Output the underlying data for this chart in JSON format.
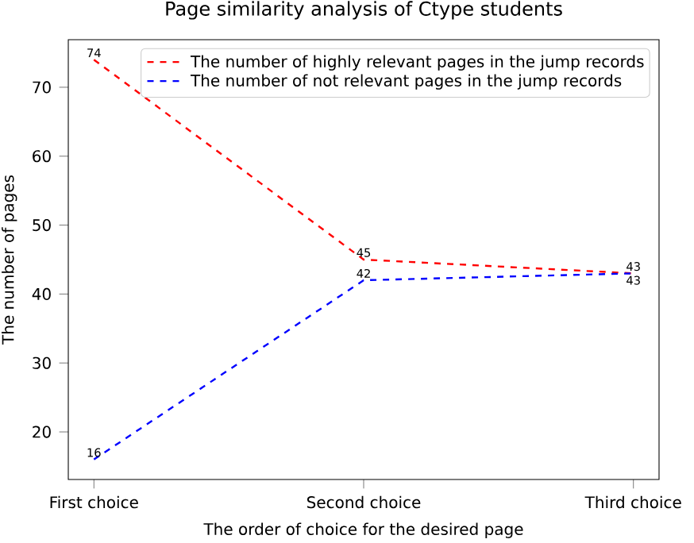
{
  "chart_data": {
    "type": "line",
    "title": "Page similarity analysis of Ctype students",
    "xlabel": "The order of choice for the desired page",
    "ylabel": "The number of pages",
    "categories": [
      "First choice",
      "Second choice",
      "Third choice"
    ],
    "series": [
      {
        "name": "The number of highly relevant pages in the jump records",
        "color": "#ff0000",
        "values": [
          74,
          45,
          43
        ]
      },
      {
        "name": "The number of not relevant pages in the jump records",
        "color": "#0000ff",
        "values": [
          16,
          42,
          43
        ]
      }
    ],
    "ylim": [
      13.1,
      76.9
    ],
    "yticks": [
      20,
      30,
      40,
      50,
      60,
      70
    ],
    "legend": "top right",
    "line_style": "dashed",
    "marker": "none",
    "data_labels": true
  }
}
